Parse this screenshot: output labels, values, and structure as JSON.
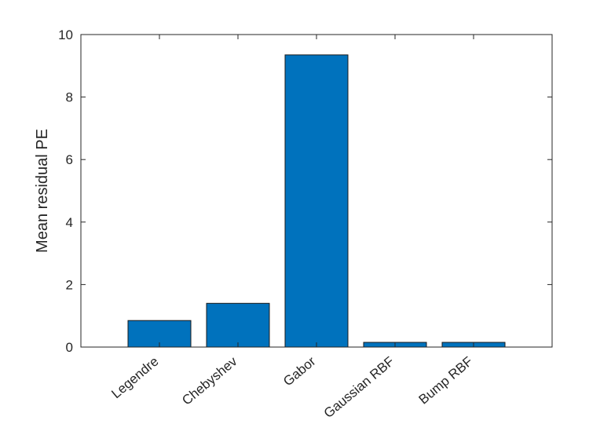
{
  "chart_data": {
    "type": "bar",
    "categories": [
      "Legendre",
      "Chebyshev",
      "Gabor",
      "Gaussian RBF",
      "Bump RBF"
    ],
    "values": [
      0.85,
      1.4,
      9.35,
      0.15,
      0.15
    ],
    "xlabel": "",
    "ylabel": "Mean residual PE",
    "ylim": [
      0,
      10
    ],
    "yticks": [
      0,
      2,
      4,
      6,
      8,
      10
    ],
    "grid": false,
    "bar_color": "#0072BD"
  }
}
